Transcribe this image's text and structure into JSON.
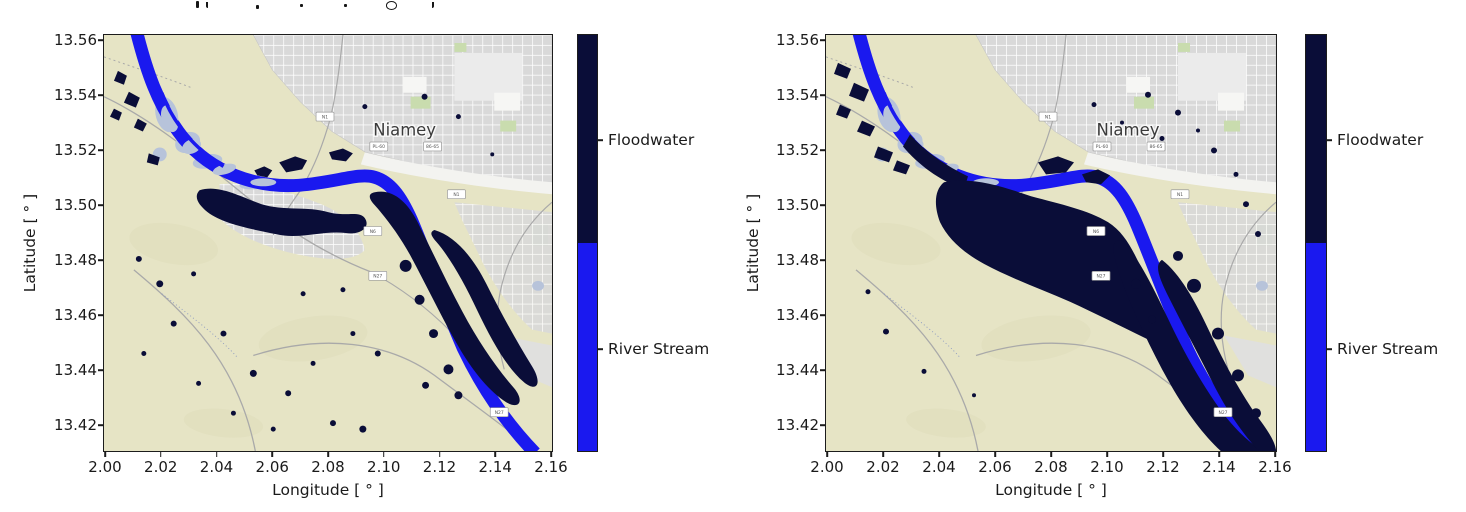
{
  "axes": {
    "x_label": "Longitude [ ° ]",
    "y_label": "Latitude [ ° ]",
    "x_ticks": [
      "2.00",
      "2.02",
      "2.04",
      "2.06",
      "2.08",
      "2.10",
      "2.12",
      "2.14",
      "2.16"
    ],
    "y_ticks": [
      "13.56",
      "13.54",
      "13.52",
      "13.50",
      "13.48",
      "13.46",
      "13.44",
      "13.42"
    ]
  },
  "legend": {
    "floodwater": "Floodwater",
    "river_stream": "River Stream"
  },
  "map": {
    "city": "Niamey",
    "badges": [
      "N1",
      "PL-60",
      "86-65",
      "N1",
      "N6",
      "N27",
      "N27"
    ]
  },
  "colors": {
    "floodwater": "#0a0d38",
    "river_stream": "#1a19ef",
    "map_land": "#e6e4c5",
    "terrain_shade": "#dedcba",
    "city_fill": "#d9d9d9",
    "city_street": "#ffffff",
    "white_patch": "#f3f3f0",
    "road": "#a9a9a9",
    "water_light": "#b7c3da",
    "green_area": "#c9dcae",
    "axis_text": "#1a1a1a",
    "city_label_text": "#3b3b3b"
  },
  "chart_data": [
    {
      "type": "map",
      "panel": "left",
      "title": "",
      "xlabel": "Longitude [ ° ]",
      "ylabel": "Latitude [ ° ]",
      "xlim": [
        2.0,
        2.16
      ],
      "ylim": [
        13.41,
        13.562
      ],
      "x_ticks": [
        2.0,
        2.02,
        2.04,
        2.06,
        2.08,
        2.1,
        2.12,
        2.14,
        2.16
      ],
      "y_ticks": [
        13.42,
        13.44,
        13.46,
        13.48,
        13.5,
        13.52,
        13.54,
        13.56
      ],
      "grid": false,
      "legend": {
        "position": "right-colorbar",
        "entries": [
          "Floodwater",
          "River Stream"
        ]
      },
      "classes": [
        {
          "label": "Floodwater",
          "color": "#0a0d38"
        },
        {
          "label": "River Stream",
          "color": "#1a19ef"
        }
      ],
      "annotations": [
        {
          "text": "Niamey",
          "lon": 2.107,
          "lat": 13.527
        }
      ],
      "notes": "Niger River stream (bright blue) crossing Niamey from NW to SE with detected floodwater patches (dark navy) flanking the river; scattered small flood specks over the southwestern plain."
    },
    {
      "type": "map",
      "panel": "right",
      "title": "",
      "xlabel": "Longitude [ ° ]",
      "ylabel": "Latitude [ ° ]",
      "xlim": [
        2.0,
        2.16
      ],
      "ylim": [
        13.41,
        13.562
      ],
      "x_ticks": [
        2.0,
        2.02,
        2.04,
        2.06,
        2.08,
        2.1,
        2.12,
        2.14,
        2.16
      ],
      "y_ticks": [
        13.42,
        13.44,
        13.46,
        13.48,
        13.5,
        13.52,
        13.54,
        13.56
      ],
      "grid": false,
      "legend": {
        "position": "right-colorbar",
        "entries": [
          "Floodwater",
          "River Stream"
        ]
      },
      "classes": [
        {
          "label": "Floodwater",
          "color": "#0a0d38"
        },
        {
          "label": "River Stream",
          "color": "#1a19ef"
        }
      ],
      "annotations": [
        {
          "text": "Niamey",
          "lon": 2.107,
          "lat": 13.527
        }
      ],
      "notes": "Same extent as left panel but with a much larger, nearly continuous floodwater band along the southwest bank of the river and fewer isolated specks."
    }
  ]
}
